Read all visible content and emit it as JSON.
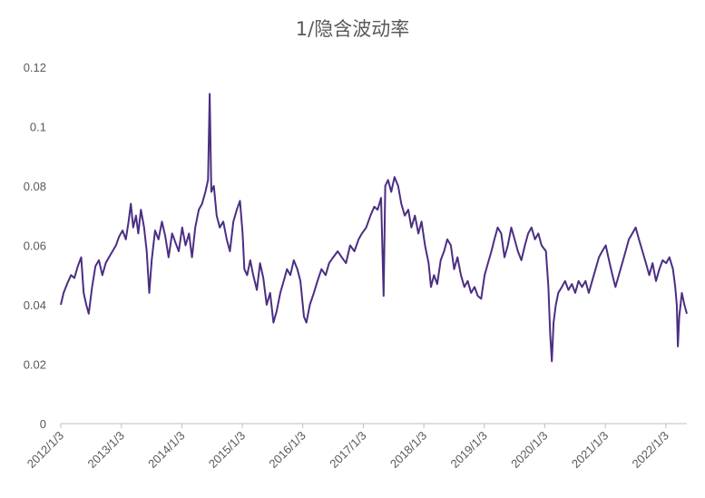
{
  "chart_data": {
    "type": "line",
    "title": "1/隐含波动率",
    "xlabel": "",
    "ylabel": "",
    "ylim": [
      0,
      0.12
    ],
    "y_ticks": [
      {
        "value": 0,
        "label": "0"
      },
      {
        "value": 0.02,
        "label": "0.02"
      },
      {
        "value": 0.04,
        "label": "0.04"
      },
      {
        "value": 0.06,
        "label": "0.06"
      },
      {
        "value": 0.08,
        "label": "0.08"
      },
      {
        "value": 0.1,
        "label": "0.1"
      },
      {
        "value": 0.12,
        "label": "0.12"
      }
    ],
    "x_ticks": [
      "2012/1/3",
      "2013/1/3",
      "2014/1/3",
      "2015/1/3",
      "2016/1/3",
      "2017/1/3",
      "2018/1/3",
      "2019/1/3",
      "2020/1/3",
      "2021/1/3",
      "2022/1/3"
    ],
    "xlim": [
      "2012-01-03",
      "2022-05-10"
    ],
    "grid": false,
    "legend": "none",
    "line_color": "#4b2e83",
    "series": [
      {
        "points": [
          [
            "2012-01-03",
            0.04
          ],
          [
            "2012-01-20",
            0.044
          ],
          [
            "2012-02-10",
            0.047
          ],
          [
            "2012-03-05",
            0.05
          ],
          [
            "2012-03-25",
            0.049
          ],
          [
            "2012-04-15",
            0.053
          ],
          [
            "2012-05-05",
            0.056
          ],
          [
            "2012-05-20",
            0.044
          ],
          [
            "2012-06-05",
            0.04
          ],
          [
            "2012-06-20",
            0.037
          ],
          [
            "2012-07-10",
            0.046
          ],
          [
            "2012-07-30",
            0.053
          ],
          [
            "2012-08-20",
            0.055
          ],
          [
            "2012-09-10",
            0.05
          ],
          [
            "2012-09-30",
            0.054
          ],
          [
            "2012-10-20",
            0.056
          ],
          [
            "2012-11-10",
            0.058
          ],
          [
            "2012-12-01",
            0.06
          ],
          [
            "2012-12-20",
            0.063
          ],
          [
            "2013-01-10",
            0.065
          ],
          [
            "2013-01-30",
            0.062
          ],
          [
            "2013-02-15",
            0.068
          ],
          [
            "2013-03-01",
            0.074
          ],
          [
            "2013-03-15",
            0.066
          ],
          [
            "2013-04-01",
            0.07
          ],
          [
            "2013-04-15",
            0.064
          ],
          [
            "2013-05-01",
            0.072
          ],
          [
            "2013-05-20",
            0.066
          ],
          [
            "2013-06-05",
            0.058
          ],
          [
            "2013-06-20",
            0.044
          ],
          [
            "2013-07-05",
            0.055
          ],
          [
            "2013-07-25",
            0.065
          ],
          [
            "2013-08-15",
            0.062
          ],
          [
            "2013-09-05",
            0.068
          ],
          [
            "2013-09-25",
            0.063
          ],
          [
            "2013-10-15",
            0.056
          ],
          [
            "2013-11-05",
            0.064
          ],
          [
            "2013-11-25",
            0.061
          ],
          [
            "2013-12-15",
            0.058
          ],
          [
            "2014-01-05",
            0.066
          ],
          [
            "2014-01-25",
            0.06
          ],
          [
            "2014-02-15",
            0.064
          ],
          [
            "2014-03-05",
            0.056
          ],
          [
            "2014-03-25",
            0.066
          ],
          [
            "2014-04-15",
            0.072
          ],
          [
            "2014-05-05",
            0.074
          ],
          [
            "2014-05-25",
            0.078
          ],
          [
            "2014-06-10",
            0.082
          ],
          [
            "2014-06-20",
            0.111
          ],
          [
            "2014-06-30",
            0.078
          ],
          [
            "2014-07-15",
            0.08
          ],
          [
            "2014-08-01",
            0.07
          ],
          [
            "2014-08-20",
            0.066
          ],
          [
            "2014-09-10",
            0.068
          ],
          [
            "2014-10-01",
            0.062
          ],
          [
            "2014-10-20",
            0.058
          ],
          [
            "2014-11-10",
            0.068
          ],
          [
            "2014-12-01",
            0.072
          ],
          [
            "2014-12-20",
            0.075
          ],
          [
            "2015-01-05",
            0.064
          ],
          [
            "2015-01-15",
            0.052
          ],
          [
            "2015-02-01",
            0.05
          ],
          [
            "2015-02-20",
            0.055
          ],
          [
            "2015-03-10",
            0.05
          ],
          [
            "2015-04-01",
            0.045
          ],
          [
            "2015-04-20",
            0.054
          ],
          [
            "2015-05-10",
            0.049
          ],
          [
            "2015-05-30",
            0.04
          ],
          [
            "2015-06-20",
            0.044
          ],
          [
            "2015-07-10",
            0.034
          ],
          [
            "2015-07-30",
            0.038
          ],
          [
            "2015-08-20",
            0.044
          ],
          [
            "2015-09-10",
            0.048
          ],
          [
            "2015-09-30",
            0.052
          ],
          [
            "2015-10-20",
            0.05
          ],
          [
            "2015-11-10",
            0.055
          ],
          [
            "2015-12-01",
            0.052
          ],
          [
            "2015-12-20",
            0.048
          ],
          [
            "2016-01-10",
            0.036
          ],
          [
            "2016-01-25",
            0.034
          ],
          [
            "2016-02-15",
            0.04
          ],
          [
            "2016-03-10",
            0.044
          ],
          [
            "2016-04-01",
            0.048
          ],
          [
            "2016-04-25",
            0.052
          ],
          [
            "2016-05-20",
            0.05
          ],
          [
            "2016-06-10",
            0.054
          ],
          [
            "2016-07-05",
            0.056
          ],
          [
            "2016-08-01",
            0.058
          ],
          [
            "2016-08-25",
            0.056
          ],
          [
            "2016-09-20",
            0.054
          ],
          [
            "2016-10-15",
            0.06
          ],
          [
            "2016-11-10",
            0.058
          ],
          [
            "2016-12-05",
            0.062
          ],
          [
            "2016-12-25",
            0.064
          ],
          [
            "2017-01-20",
            0.066
          ],
          [
            "2017-02-15",
            0.07
          ],
          [
            "2017-03-10",
            0.073
          ],
          [
            "2017-03-30",
            0.072
          ],
          [
            "2017-04-20",
            0.076
          ],
          [
            "2017-05-05",
            0.043
          ],
          [
            "2017-05-15",
            0.08
          ],
          [
            "2017-06-01",
            0.082
          ],
          [
            "2017-06-20",
            0.078
          ],
          [
            "2017-07-10",
            0.083
          ],
          [
            "2017-08-01",
            0.08
          ],
          [
            "2017-08-20",
            0.074
          ],
          [
            "2017-09-10",
            0.07
          ],
          [
            "2017-10-01",
            0.072
          ],
          [
            "2017-10-20",
            0.066
          ],
          [
            "2017-11-10",
            0.07
          ],
          [
            "2017-12-01",
            0.064
          ],
          [
            "2017-12-20",
            0.068
          ],
          [
            "2018-01-10",
            0.06
          ],
          [
            "2018-02-01",
            0.054
          ],
          [
            "2018-02-15",
            0.046
          ],
          [
            "2018-03-05",
            0.05
          ],
          [
            "2018-03-25",
            0.047
          ],
          [
            "2018-04-15",
            0.055
          ],
          [
            "2018-05-05",
            0.058
          ],
          [
            "2018-05-25",
            0.062
          ],
          [
            "2018-06-15",
            0.06
          ],
          [
            "2018-07-05",
            0.052
          ],
          [
            "2018-07-25",
            0.056
          ],
          [
            "2018-08-15",
            0.05
          ],
          [
            "2018-09-05",
            0.046
          ],
          [
            "2018-09-25",
            0.048
          ],
          [
            "2018-10-15",
            0.044
          ],
          [
            "2018-11-05",
            0.046
          ],
          [
            "2018-11-25",
            0.043
          ],
          [
            "2018-12-15",
            0.042
          ],
          [
            "2019-01-05",
            0.05
          ],
          [
            "2019-01-25",
            0.054
          ],
          [
            "2019-02-15",
            0.058
          ],
          [
            "2019-03-05",
            0.062
          ],
          [
            "2019-03-25",
            0.066
          ],
          [
            "2019-04-15",
            0.064
          ],
          [
            "2019-05-05",
            0.056
          ],
          [
            "2019-05-25",
            0.06
          ],
          [
            "2019-06-15",
            0.066
          ],
          [
            "2019-07-05",
            0.062
          ],
          [
            "2019-07-25",
            0.058
          ],
          [
            "2019-08-15",
            0.055
          ],
          [
            "2019-09-05",
            0.06
          ],
          [
            "2019-09-25",
            0.064
          ],
          [
            "2019-10-15",
            0.066
          ],
          [
            "2019-11-05",
            0.062
          ],
          [
            "2019-11-25",
            0.064
          ],
          [
            "2019-12-15",
            0.06
          ],
          [
            "2020-01-10",
            0.058
          ],
          [
            "2020-01-25",
            0.046
          ],
          [
            "2020-02-05",
            0.03
          ],
          [
            "2020-02-15",
            0.021
          ],
          [
            "2020-02-25",
            0.034
          ],
          [
            "2020-03-10",
            0.04
          ],
          [
            "2020-03-25",
            0.044
          ],
          [
            "2020-04-15",
            0.046
          ],
          [
            "2020-05-05",
            0.048
          ],
          [
            "2020-05-25",
            0.045
          ],
          [
            "2020-06-15",
            0.047
          ],
          [
            "2020-07-05",
            0.044
          ],
          [
            "2020-07-25",
            0.048
          ],
          [
            "2020-08-15",
            0.046
          ],
          [
            "2020-09-05",
            0.048
          ],
          [
            "2020-09-25",
            0.044
          ],
          [
            "2020-10-15",
            0.048
          ],
          [
            "2020-11-05",
            0.052
          ],
          [
            "2020-11-25",
            0.056
          ],
          [
            "2020-12-15",
            0.058
          ],
          [
            "2021-01-05",
            0.06
          ],
          [
            "2021-01-25",
            0.055
          ],
          [
            "2021-02-15",
            0.05
          ],
          [
            "2021-03-05",
            0.046
          ],
          [
            "2021-03-25",
            0.05
          ],
          [
            "2021-04-15",
            0.054
          ],
          [
            "2021-05-05",
            0.058
          ],
          [
            "2021-05-25",
            0.062
          ],
          [
            "2021-06-15",
            0.064
          ],
          [
            "2021-07-05",
            0.066
          ],
          [
            "2021-07-25",
            0.062
          ],
          [
            "2021-08-15",
            0.058
          ],
          [
            "2021-09-05",
            0.054
          ],
          [
            "2021-09-25",
            0.05
          ],
          [
            "2021-10-15",
            0.054
          ],
          [
            "2021-11-05",
            0.048
          ],
          [
            "2021-11-25",
            0.052
          ],
          [
            "2021-12-15",
            0.055
          ],
          [
            "2022-01-05",
            0.054
          ],
          [
            "2022-01-25",
            0.056
          ],
          [
            "2022-02-15",
            0.052
          ],
          [
            "2022-03-01",
            0.046
          ],
          [
            "2022-03-10",
            0.04
          ],
          [
            "2022-03-17",
            0.026
          ],
          [
            "2022-03-25",
            0.036
          ],
          [
            "2022-04-10",
            0.044
          ],
          [
            "2022-04-25",
            0.04
          ],
          [
            "2022-05-10",
            0.037
          ]
        ]
      }
    ]
  }
}
